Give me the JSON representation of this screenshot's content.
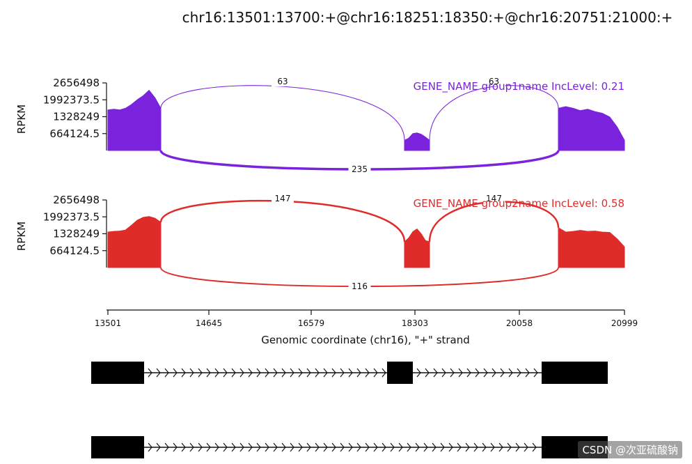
{
  "title": "chr16:13501:13700:+@chr16:18251:18350:+@chr16:20751:21000:+",
  "watermark": "CSDN @次亚硫酸钠",
  "chart_data": {
    "type": "area",
    "xlabel": "Genomic coordinate (chr16), \"+\" strand",
    "xlim": [
      13501,
      20999
    ],
    "x_ticks": [
      "13501",
      "14645",
      "16579",
      "18303",
      "20058",
      "20999"
    ],
    "ylim": [
      0,
      2656498
    ],
    "y_ticks": [
      "2656498",
      "1992373.5",
      "1328249",
      "664124.5"
    ],
    "ylabel": "RPKM",
    "panels": [
      {
        "label": "GENE_NAME group1name IncLevel: 0.21",
        "color": "#7b22dc",
        "exons": [
          {
            "x": [
              13501,
              13700
            ],
            "profile": [
              1593899,
              1620462,
              1593899,
              1660307,
              1806394,
              1992374,
              2152464,
              2364982,
              2072055,
              1660307
            ]
          },
          {
            "x": [
              18251,
              18350
            ],
            "profile": [
              398475,
              485966,
              664125,
              690687,
              637562,
              531300,
              398475
            ]
          },
          {
            "x": [
              20751,
              21000
            ],
            "profile": [
              1660307,
              1726720,
              1660307,
              1567337,
              1620462,
              1527493,
              1461080,
              1314968,
              929774,
              398475
            ]
          }
        ],
        "junctions": [
          {
            "from": 13700,
            "to": 18251,
            "count": "63",
            "side": "top"
          },
          {
            "from": 18350,
            "to": 20751,
            "count": "63",
            "side": "top"
          },
          {
            "from": 13700,
            "to": 20751,
            "count": "235",
            "side": "bottom"
          }
        ]
      },
      {
        "label": "GENE_NAME group2name IncLevel: 0.58",
        "color": "#e02b2b",
        "exons": [
          {
            "x": [
              13501,
              13700
            ],
            "profile": [
              1394662,
              1421237,
              1434518,
              1474356,
              1660307,
              1859549,
              1972449,
              2006849,
              1939487,
              1780074
            ]
          },
          {
            "x": [
              18251,
              18350
            ],
            "profile": [
              1009468,
              1161050,
              1407943,
              1514212,
              1328249,
              1062593,
              1009468
            ]
          },
          {
            "x": [
              20751,
              21000
            ],
            "profile": [
              1567337,
              1394662,
              1421237,
              1461080,
              1421237,
              1434518,
              1394662,
              1381381,
              1128999,
              810212
            ]
          }
        ],
        "junctions": [
          {
            "from": 13700,
            "to": 18251,
            "count": "147",
            "side": "top"
          },
          {
            "from": 18350,
            "to": 20751,
            "count": "147",
            "side": "top"
          },
          {
            "from": 13700,
            "to": 20751,
            "count": "116",
            "side": "bottom"
          }
        ]
      }
    ],
    "isoforms": [
      {
        "exons": [
          [
            13501,
            13700
          ],
          [
            18251,
            18350
          ],
          [
            20751,
            21000
          ]
        ]
      },
      {
        "exons": [
          [
            13501,
            13700
          ],
          [
            20751,
            21000
          ]
        ]
      }
    ]
  }
}
